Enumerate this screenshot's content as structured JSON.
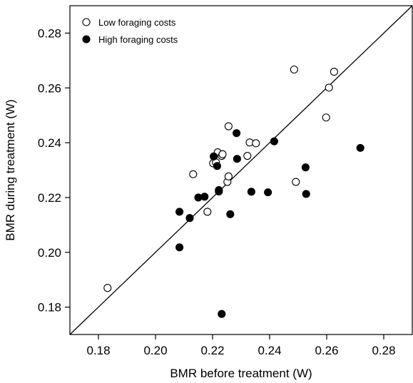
{
  "chart_data": {
    "type": "scatter",
    "title": "",
    "xlabel": "BMR before treatment (W)",
    "ylabel": "BMR during treatment (W)",
    "xlim": [
      0.17,
      0.29
    ],
    "ylim": [
      0.17,
      0.29
    ],
    "xticks": [
      "0.18",
      "0.20",
      "0.22",
      "0.24",
      "0.26",
      "0.28"
    ],
    "yticks": [
      "0.18",
      "0.20",
      "0.22",
      "0.24",
      "0.26",
      "0.28"
    ],
    "legend_position": "top-left",
    "identity_line": true,
    "grid": false,
    "series": [
      {
        "name": "Low foraging costs",
        "marker": "open-circle",
        "color": "#000000",
        "points": [
          [
            0.1832,
            0.187
          ],
          [
            0.2132,
            0.2285
          ],
          [
            0.2182,
            0.2148
          ],
          [
            0.2202,
            0.2325
          ],
          [
            0.2212,
            0.2328
          ],
          [
            0.2218,
            0.2365
          ],
          [
            0.2232,
            0.2352
          ],
          [
            0.2235,
            0.2358
          ],
          [
            0.2252,
            0.2257
          ],
          [
            0.2256,
            0.2277
          ],
          [
            0.2256,
            0.246
          ],
          [
            0.2322,
            0.2352
          ],
          [
            0.233,
            0.2401
          ],
          [
            0.2352,
            0.2398
          ],
          [
            0.2486,
            0.2667
          ],
          [
            0.2492,
            0.2257
          ],
          [
            0.2598,
            0.2492
          ],
          [
            0.2608,
            0.2601
          ],
          [
            0.2626,
            0.2659
          ]
        ]
      },
      {
        "name": "High foraging costs",
        "marker": "filled-circle",
        "color": "#000000",
        "points": [
          [
            0.2084,
            0.2018
          ],
          [
            0.2084,
            0.2148
          ],
          [
            0.212,
            0.2125
          ],
          [
            0.215,
            0.22
          ],
          [
            0.2172,
            0.2203
          ],
          [
            0.2204,
            0.235
          ],
          [
            0.2216,
            0.2315
          ],
          [
            0.2222,
            0.2222
          ],
          [
            0.2222,
            0.2227
          ],
          [
            0.2232,
            0.1775
          ],
          [
            0.2262,
            0.2139
          ],
          [
            0.2284,
            0.2435
          ],
          [
            0.2286,
            0.2341
          ],
          [
            0.2336,
            0.2221
          ],
          [
            0.2394,
            0.2219
          ],
          [
            0.2416,
            0.2405
          ],
          [
            0.2526,
            0.231
          ],
          [
            0.2528,
            0.2213
          ],
          [
            0.2718,
            0.2381
          ]
        ]
      }
    ]
  }
}
